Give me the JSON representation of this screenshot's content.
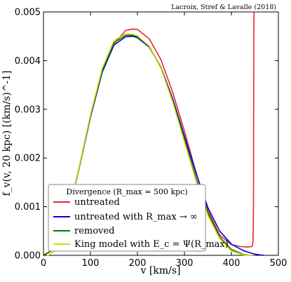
{
  "chart_data": {
    "type": "line",
    "xlabel": "v [km/s]",
    "ylabel": "f_v(v, 20 kpc) [(km/s)^-1]",
    "xlim": [
      0,
      500
    ],
    "ylim": [
      0,
      0.005
    ],
    "xticks": [
      "0",
      "100",
      "200",
      "300",
      "400",
      "500"
    ],
    "yticks": [
      "0.000",
      "0.001",
      "0.002",
      "0.003",
      "0.004",
      "0.005"
    ],
    "annotation": "Lacroix, Stref & Lavalle (2018)",
    "legend": {
      "title": "Divergence (R_max = 500 kpc)",
      "placement": "lower-left"
    },
    "series": [
      {
        "name": "untreated",
        "color": "#e8253a",
        "x": [
          0,
          25,
          50,
          75,
          100,
          125,
          150,
          175,
          190,
          200,
          225,
          250,
          275,
          300,
          325,
          350,
          375,
          400,
          420,
          435,
          443,
          445,
          446,
          447,
          447.5,
          448
        ],
        "y": [
          0,
          0.00014,
          0.00074,
          0.00175,
          0.00285,
          0.00378,
          0.00435,
          0.00462,
          0.00465,
          0.00464,
          0.00445,
          0.00402,
          0.00335,
          0.00255,
          0.0017,
          0.00092,
          0.00042,
          0.00022,
          0.00018,
          0.00017,
          0.00018,
          0.0002,
          0.0003,
          0.001,
          0.0035,
          0.005
        ]
      },
      {
        "name": "untreated with R_max → ∞",
        "color": "#0000e6",
        "x": [
          0,
          25,
          50,
          75,
          100,
          125,
          150,
          175,
          190,
          200,
          225,
          250,
          275,
          300,
          325,
          350,
          375,
          400,
          425,
          440,
          450,
          460,
          470
        ],
        "y": [
          0,
          0.00014,
          0.00074,
          0.00175,
          0.00284,
          0.00376,
          0.00432,
          0.00449,
          0.0045,
          0.00447,
          0.00428,
          0.00386,
          0.00322,
          0.00245,
          0.00168,
          0.00098,
          0.0005,
          0.00023,
          0.0001,
          5e-05,
          2.5e-05,
          1e-05,
          0
        ]
      },
      {
        "name": "removed",
        "color": "#007a00",
        "x": [
          0,
          25,
          50,
          75,
          100,
          125,
          150,
          175,
          190,
          200,
          225,
          250,
          275,
          300,
          325,
          350,
          375,
          400,
          425,
          440,
          447
        ],
        "y": [
          0,
          0.00014,
          0.00075,
          0.00177,
          0.00287,
          0.0038,
          0.00437,
          0.00452,
          0.00452,
          0.00449,
          0.0043,
          0.00386,
          0.00318,
          0.00238,
          0.00158,
          0.00087,
          0.00038,
          0.00012,
          2e-05,
          0,
          0
        ]
      },
      {
        "name": "King model with E_c = Ψ(R_max)",
        "color": "#d9d900",
        "x": [
          0,
          10,
          25,
          50,
          75,
          100,
          125,
          150,
          175,
          190,
          200,
          225,
          250,
          275,
          300,
          325,
          350,
          375,
          400,
          425,
          440,
          447
        ],
        "y": [
          0,
          0,
          0.0001,
          0.00073,
          0.00177,
          0.00289,
          0.00384,
          0.00441,
          0.00455,
          0.00454,
          0.00451,
          0.0043,
          0.00384,
          0.00315,
          0.00233,
          0.00152,
          0.00082,
          0.00034,
          9e-05,
          1e-05,
          0,
          0
        ]
      }
    ]
  }
}
